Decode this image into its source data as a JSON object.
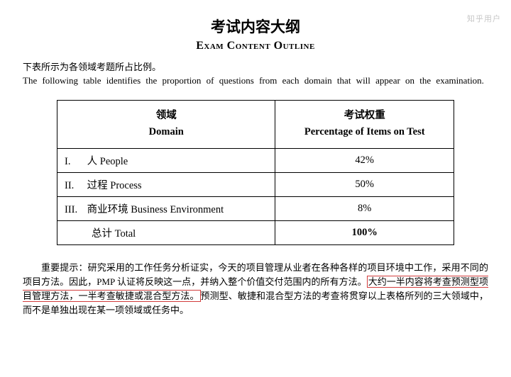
{
  "watermark": "知乎用户",
  "title_cn": "考试内容大纲",
  "title_en": "Exam Content Outline",
  "intro_cn": "下表所示为各领域考题所占比例。",
  "intro_en": "The following table identifies the proportion of questions from each domain that will appear on the examination.",
  "table": {
    "header_domain_cn": "领域",
    "header_domain_en": "Domain",
    "header_pct_cn": "考试权重",
    "header_pct_en": "Percentage of Items on Test",
    "rows": [
      {
        "num": "I.",
        "label": "人 People",
        "pct": "42%"
      },
      {
        "num": "II.",
        "label": "过程 Process",
        "pct": "50%"
      },
      {
        "num": "III.",
        "label": "商业环境 Business Environment",
        "pct": "8%"
      }
    ],
    "total_label": "总计 Total",
    "total_pct": "100%"
  },
  "note": {
    "pre": "重要提示：研究采用的工作任务分析证实，今天的项目管理从业者在各种各样的项目环境中工作，采用不同的项目方法。因此，PMP 认证将反映这一点，并纳入整个价值交付范围内的所有方法。",
    "highlight": "大约一半内容将考查预测型项目管理方法，一半考查敏捷或混合型方法。",
    "post": "预测型、敏捷和混合型方法的考查将贯穿以上表格所列的三大领域中，而不是单独出现在某一项领域或任务中。"
  }
}
